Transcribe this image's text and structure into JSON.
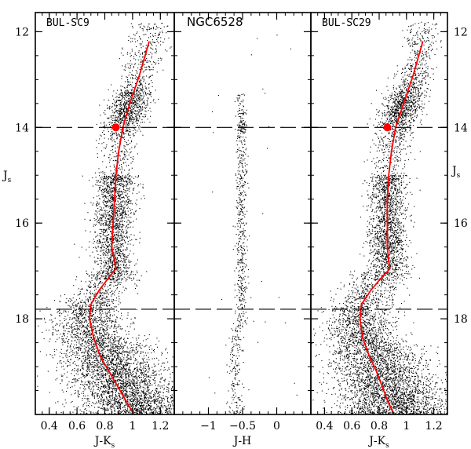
{
  "chart_data": [
    {
      "type": "scatter",
      "title": "BUL-SC9",
      "xlabel": "J-K",
      "xlabel_sub": "s",
      "ylabel": "J",
      "ylabel_sub": "s",
      "xlim": [
        0.3,
        1.3
      ],
      "ylim": [
        20.0,
        11.6
      ],
      "x_ticks": [
        0.4,
        0.6,
        0.8,
        1,
        1.2
      ],
      "x_tick_labels": [
        "0.4",
        "0.6",
        "0.8",
        "1",
        "1.2"
      ],
      "y_ticks": [
        12,
        14,
        16,
        18
      ],
      "y_tick_labels": [
        "12",
        "14",
        "16",
        "18"
      ],
      "reference_lines_y": [
        14.0,
        17.8
      ],
      "red_clump": {
        "x": 0.88,
        "y": 14.0
      },
      "isochrone": {
        "x": [
          1.12,
          1.05,
          0.98,
          0.93,
          0.9,
          0.88,
          0.87,
          0.86,
          0.85,
          0.87,
          0.88,
          0.84,
          0.76,
          0.7,
          0.69,
          0.72,
          0.77,
          0.83,
          0.89,
          0.95,
          1.0
        ],
        "y": [
          12.2,
          12.9,
          13.5,
          14.0,
          14.5,
          15.0,
          15.5,
          16.0,
          16.5,
          16.8,
          16.95,
          17.1,
          17.4,
          17.7,
          18.0,
          18.4,
          18.8,
          19.1,
          19.4,
          19.7,
          19.95
        ]
      }
    },
    {
      "type": "scatter",
      "title": "NGC6528",
      "xlabel": "J-H",
      "xlabel_sub": "",
      "ylabel": "",
      "xlim": [
        -1.5,
        0.5
      ],
      "ylim": [
        20.0,
        11.6
      ],
      "x_ticks": [
        -1,
        -0.5,
        0
      ],
      "x_tick_labels": [
        "−1",
        "−0.5",
        "0"
      ],
      "y_ticks": [
        12,
        14,
        16,
        18
      ],
      "reference_lines_y": [
        14.0,
        17.8
      ]
    },
    {
      "type": "scatter",
      "title": "BUL-SC29",
      "xlabel": "J-K",
      "xlabel_sub": "s",
      "ylabel": "J",
      "ylabel_sub": "s",
      "xlim": [
        0.3,
        1.3
      ],
      "ylim": [
        20.0,
        11.6
      ],
      "x_ticks": [
        0.4,
        0.6,
        0.8,
        1,
        1.2
      ],
      "x_tick_labels": [
        "0.4",
        "0.6",
        "0.8",
        "1",
        "1.2"
      ],
      "y_ticks": [
        12,
        14,
        16,
        18
      ],
      "y_tick_labels": [
        "12",
        "14",
        "16",
        "18"
      ],
      "reference_lines_y": [
        14.0,
        17.8
      ],
      "red_clump": {
        "x": 0.86,
        "y": 14.0
      },
      "isochrone": {
        "x": [
          1.12,
          1.05,
          0.98,
          0.92,
          0.89,
          0.87,
          0.86,
          0.86,
          0.86,
          0.87,
          0.88,
          0.83,
          0.74,
          0.67,
          0.66,
          0.68,
          0.73,
          0.78,
          0.82,
          0.86,
          0.9
        ],
        "y": [
          12.2,
          12.9,
          13.5,
          14.0,
          14.5,
          15.0,
          15.5,
          16.0,
          16.5,
          16.8,
          16.95,
          17.1,
          17.4,
          17.7,
          18.0,
          18.4,
          18.8,
          19.1,
          19.4,
          19.7,
          19.95
        ]
      }
    }
  ]
}
